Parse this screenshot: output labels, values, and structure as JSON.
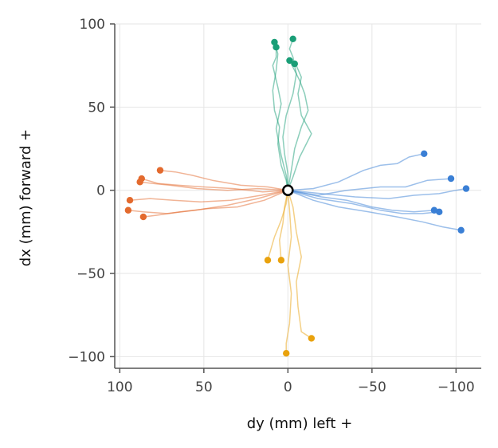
{
  "chart_data": {
    "type": "line",
    "title": "",
    "xlabel": "dy (mm)   left +",
    "ylabel": "dx (mm)   forward +",
    "xlim": [
      103,
      -115
    ],
    "ylim": [
      -107,
      100
    ],
    "x_inverted": true,
    "x_ticks": [
      100,
      50,
      0,
      -50,
      -100
    ],
    "x_tick_labels": [
      "100",
      "50",
      "0",
      "−50",
      "−100"
    ],
    "y_ticks": [
      -100,
      -50,
      0,
      50,
      100
    ],
    "y_tick_labels": [
      "−100",
      "−50",
      "0",
      "50",
      "100"
    ],
    "grid": true,
    "legend": "none",
    "origin_marker": {
      "x": 0,
      "y": 0
    },
    "series": [
      {
        "color": "#1a9e77",
        "trajectories": [
          [
            [
              0,
              0
            ],
            [
              1,
              6
            ],
            [
              4,
              15
            ],
            [
              6,
              28
            ],
            [
              5,
              38
            ],
            [
              8,
              48
            ],
            [
              9,
              60
            ],
            [
              7,
              72
            ],
            [
              6,
              82
            ],
            [
              8,
              89
            ]
          ],
          [
            [
              0,
              0
            ],
            [
              0,
              10
            ],
            [
              2,
              22
            ],
            [
              3,
              32
            ],
            [
              1,
              45
            ],
            [
              -3,
              58
            ],
            [
              -5,
              70
            ],
            [
              -3,
              80
            ],
            [
              -1,
              85
            ],
            [
              -3,
              91
            ]
          ],
          [
            [
              0,
              0
            ],
            [
              -2,
              12
            ],
            [
              -4,
              25
            ],
            [
              -8,
              38
            ],
            [
              -12,
              48
            ],
            [
              -10,
              58
            ],
            [
              -7,
              66
            ],
            [
              -4,
              72
            ],
            [
              -1,
              78
            ]
          ],
          [
            [
              0,
              0
            ],
            [
              -3,
              8
            ],
            [
              -7,
              20
            ],
            [
              -14,
              34
            ],
            [
              -8,
              45
            ],
            [
              -6,
              58
            ],
            [
              -8,
              68
            ],
            [
              -5,
              75
            ],
            [
              -4,
              76
            ]
          ],
          [
            [
              0,
              0
            ],
            [
              1,
              9
            ],
            [
              4,
              21
            ],
            [
              7,
              37
            ],
            [
              4,
              52
            ],
            [
              6,
              62
            ],
            [
              9,
              75
            ],
            [
              7,
              80
            ],
            [
              7,
              86
            ]
          ]
        ],
        "endpoints": [
          [
            8,
            89
          ],
          [
            -3,
            91
          ],
          [
            -1,
            78
          ],
          [
            -4,
            76
          ],
          [
            7,
            86
          ]
        ]
      },
      {
        "color": "#3a7fd5",
        "trajectories": [
          [
            [
              0,
              0
            ],
            [
              -15,
              1
            ],
            [
              -30,
              5
            ],
            [
              -45,
              12
            ],
            [
              -55,
              15
            ],
            [
              -65,
              16
            ],
            [
              -72,
              20
            ],
            [
              -81,
              22
            ]
          ],
          [
            [
              0,
              0
            ],
            [
              -18,
              -3
            ],
            [
              -35,
              0
            ],
            [
              -55,
              2
            ],
            [
              -70,
              2
            ],
            [
              -83,
              6
            ],
            [
              -97,
              7
            ]
          ],
          [
            [
              0,
              0
            ],
            [
              -20,
              -2
            ],
            [
              -40,
              -4
            ],
            [
              -60,
              -5
            ],
            [
              -75,
              -3
            ],
            [
              -90,
              -2
            ],
            [
              -100,
              0
            ],
            [
              -106,
              1
            ]
          ],
          [
            [
              0,
              0
            ],
            [
              -20,
              -4
            ],
            [
              -35,
              -6
            ],
            [
              -50,
              -10
            ],
            [
              -62,
              -12
            ],
            [
              -75,
              -13
            ],
            [
              -87,
              -12
            ]
          ],
          [
            [
              0,
              0
            ],
            [
              -18,
              -5
            ],
            [
              -38,
              -8
            ],
            [
              -55,
              -12
            ],
            [
              -68,
              -14
            ],
            [
              -80,
              -14
            ],
            [
              -90,
              -13
            ]
          ],
          [
            [
              0,
              0
            ],
            [
              -15,
              -6
            ],
            [
              -30,
              -10
            ],
            [
              -48,
              -13
            ],
            [
              -65,
              -16
            ],
            [
              -80,
              -19
            ],
            [
              -92,
              -22
            ],
            [
              -103,
              -24
            ]
          ]
        ],
        "endpoints": [
          [
            -81,
            22
          ],
          [
            -97,
            7
          ],
          [
            -106,
            1
          ],
          [
            -87,
            -12
          ],
          [
            -90,
            -13
          ],
          [
            -103,
            -24
          ]
        ]
      },
      {
        "color": "#e36a2e",
        "trajectories": [
          [
            [
              0,
              0
            ],
            [
              12,
              2
            ],
            [
              28,
              3
            ],
            [
              45,
              6
            ],
            [
              57,
              9
            ],
            [
              67,
              11
            ],
            [
              76,
              12
            ]
          ],
          [
            [
              0,
              0
            ],
            [
              15,
              -1
            ],
            [
              32,
              1
            ],
            [
              50,
              2
            ],
            [
              65,
              3
            ],
            [
              77,
              4
            ],
            [
              87,
              7
            ]
          ],
          [
            [
              0,
              0
            ],
            [
              18,
              1
            ],
            [
              36,
              0
            ],
            [
              54,
              1
            ],
            [
              70,
              3
            ],
            [
              80,
              4
            ],
            [
              88,
              5
            ]
          ],
          [
            [
              0,
              0
            ],
            [
              16,
              -3
            ],
            [
              34,
              -6
            ],
            [
              52,
              -7
            ],
            [
              68,
              -6
            ],
            [
              82,
              -5
            ],
            [
              94,
              -6
            ]
          ],
          [
            [
              0,
              0
            ],
            [
              18,
              -5
            ],
            [
              36,
              -9
            ],
            [
              55,
              -12
            ],
            [
              72,
              -14
            ],
            [
              86,
              -13
            ],
            [
              95,
              -12
            ]
          ],
          [
            [
              0,
              0
            ],
            [
              14,
              -6
            ],
            [
              30,
              -10
            ],
            [
              48,
              -11
            ],
            [
              64,
              -13
            ],
            [
              78,
              -15
            ],
            [
              86,
              -16
            ]
          ]
        ],
        "endpoints": [
          [
            76,
            12
          ],
          [
            87,
            7
          ],
          [
            88,
            5
          ],
          [
            94,
            -6
          ],
          [
            95,
            -12
          ],
          [
            86,
            -16
          ]
        ]
      },
      {
        "color": "#e9a20d",
        "trajectories": [
          [
            [
              0,
              0
            ],
            [
              2,
              -10
            ],
            [
              3,
              -20
            ],
            [
              5,
              -30
            ],
            [
              4,
              -42
            ]
          ],
          [
            [
              0,
              0
            ],
            [
              1,
              -8
            ],
            [
              4,
              -18
            ],
            [
              8,
              -28
            ],
            [
              12,
              -42
            ]
          ],
          [
            [
              0,
              0
            ],
            [
              -3,
              -10
            ],
            [
              -5,
              -25
            ],
            [
              -8,
              -40
            ],
            [
              -5,
              -55
            ],
            [
              -6,
              -70
            ],
            [
              -8,
              -85
            ],
            [
              -14,
              -89
            ]
          ],
          [
            [
              0,
              0
            ],
            [
              -1,
              -12
            ],
            [
              -2,
              -28
            ],
            [
              0,
              -45
            ],
            [
              -2,
              -62
            ],
            [
              -1,
              -80
            ],
            [
              1,
              -92
            ],
            [
              1,
              -98
            ]
          ]
        ],
        "endpoints": [
          [
            4,
            -42
          ],
          [
            12,
            -42
          ],
          [
            -14,
            -89
          ],
          [
            1,
            -98
          ]
        ]
      }
    ]
  }
}
